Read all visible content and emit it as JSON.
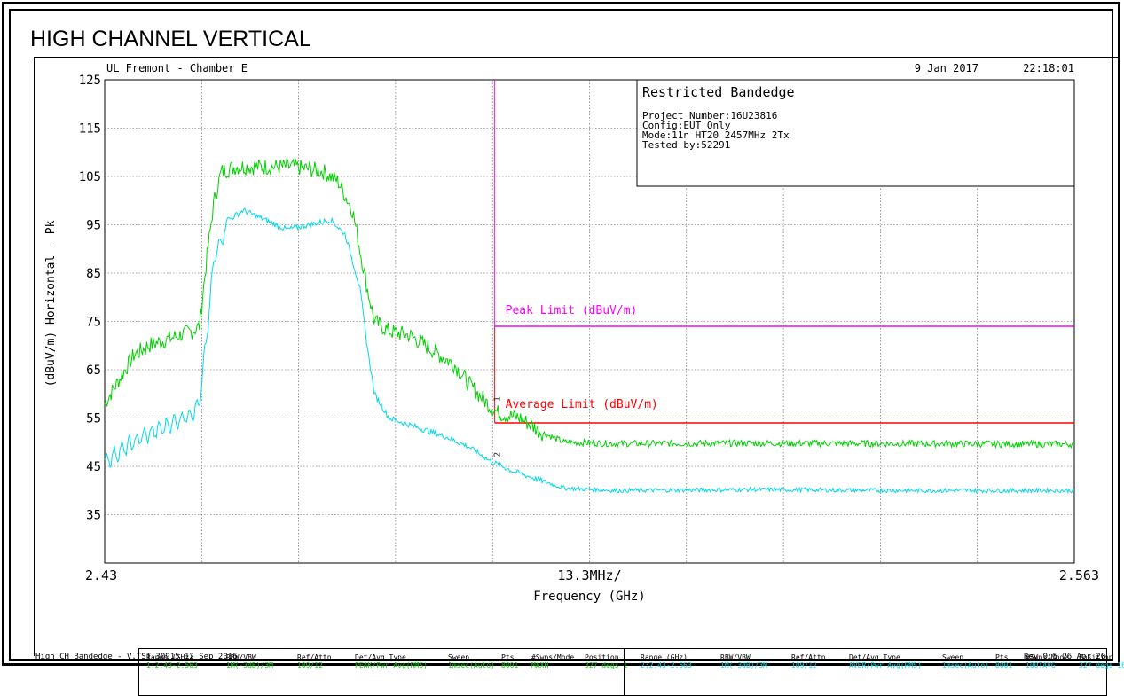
{
  "report": {
    "title": "HIGH CHANNEL VERTICAL",
    "lab": "UL Fremont - Chamber E",
    "date": "9 Jan 2017",
    "time": "22:18:01",
    "footer_left": "High CH Bandedge - V.TST 30915 12 Sep 2016",
    "footer_right": "Rev 9.5 26 Apr 20"
  },
  "info_box": {
    "heading": "Restricted Bandedge",
    "lines": [
      "Project Number:16U23816",
      "Config:EUT Only",
      "Mode:11n HT20 2457MHz 2Tx",
      "Tested by:52291"
    ]
  },
  "settings_table": {
    "headers": [
      "Range (GHz)",
      "RBW/VBW",
      "Ref/Attn",
      "Det/Avg Type",
      "Sweep",
      "Pts",
      "#Swps/Mode",
      "Position"
    ],
    "rows": [
      [
        "1:2.43-2.563",
        "1M(-3dB)/3M",
        "109/12",
        "PEAK/Pwr Avg(RMS)",
        "1msec(Auto)",
        "8001",
        "MAXH",
        "327 degs 1"
      ],
      [
        "2:2.43-2.563",
        "1M(-3dB)/3M",
        "109/12",
        "AVER/Pwr Avg(RMS)",
        "1msec(Auto)",
        "8001",
        "100TAVG",
        "327 degs 166"
      ]
    ]
  },
  "chart_data": {
    "type": "line",
    "title": "HIGH CHANNEL VERTICAL",
    "xlabel": "Frequency (GHz)",
    "ylabel": "(dBuV/m) Horizontal - Pk",
    "x_tick_left": "2.43",
    "x_tick_center": "13.3MHz/",
    "x_tick_right": "2.563",
    "xlim": [
      2.43,
      2.563
    ],
    "ylim": [
      25,
      125
    ],
    "y_ticks": [
      "125",
      "115",
      "105",
      "95",
      "85",
      "75",
      "65",
      "55",
      "45",
      "35"
    ],
    "grid": true,
    "x_divisions": 10,
    "y_divisions": 10,
    "band_edge_x": 2.4835,
    "series": [
      {
        "name": "",
        "role": "peak",
        "color": "#00d000",
        "points": [
          [
            2.43,
            58
          ],
          [
            2.432,
            63
          ],
          [
            2.434,
            68
          ],
          [
            2.436,
            70
          ],
          [
            2.438,
            71
          ],
          [
            2.44,
            72
          ],
          [
            2.442,
            73
          ],
          [
            2.443,
            74
          ],
          [
            2.444,
            88
          ],
          [
            2.445,
            100
          ],
          [
            2.446,
            106
          ],
          [
            2.448,
            107
          ],
          [
            2.452,
            107
          ],
          [
            2.456,
            107
          ],
          [
            2.46,
            106
          ],
          [
            2.462,
            104
          ],
          [
            2.464,
            98
          ],
          [
            2.465,
            90
          ],
          [
            2.466,
            82
          ],
          [
            2.467,
            75
          ],
          [
            2.469,
            73
          ],
          [
            2.472,
            72
          ],
          [
            2.475,
            69
          ],
          [
            2.478,
            66
          ],
          [
            2.48,
            62
          ],
          [
            2.4825,
            58
          ],
          [
            2.484,
            56
          ],
          [
            2.487,
            55
          ],
          [
            2.49,
            52
          ],
          [
            2.493,
            50
          ],
          [
            2.5,
            49.7
          ],
          [
            2.52,
            49.8
          ],
          [
            2.54,
            49.7
          ],
          [
            2.563,
            49.6
          ]
        ]
      },
      {
        "name": "",
        "role": "average",
        "color": "#00d8e8",
        "points": [
          [
            2.43,
            46
          ],
          [
            2.432,
            48
          ],
          [
            2.435,
            51
          ],
          [
            2.438,
            53
          ],
          [
            2.442,
            56
          ],
          [
            2.443,
            58
          ],
          [
            2.444,
            72
          ],
          [
            2.445,
            88
          ],
          [
            2.447,
            96
          ],
          [
            2.449,
            98
          ],
          [
            2.452,
            96
          ],
          [
            2.455,
            94
          ],
          [
            2.458,
            95
          ],
          [
            2.461,
            96
          ],
          [
            2.463,
            93
          ],
          [
            2.465,
            82
          ],
          [
            2.466,
            70
          ],
          [
            2.467,
            60
          ],
          [
            2.469,
            55
          ],
          [
            2.473,
            53
          ],
          [
            2.477,
            51
          ],
          [
            2.48,
            49
          ],
          [
            2.483,
            46
          ],
          [
            2.486,
            44
          ],
          [
            2.49,
            42
          ],
          [
            2.493,
            40.5
          ],
          [
            2.5,
            40
          ],
          [
            2.52,
            40.2
          ],
          [
            2.54,
            40
          ],
          [
            2.563,
            40
          ]
        ]
      }
    ],
    "limits": [
      {
        "label": "Peak Limit (dBuV/m)",
        "value": 74,
        "color": "#ff00ff",
        "x_start": 2.4835
      },
      {
        "label": "Average Limit (dBuV/m)",
        "value": 54,
        "color": "#ff0000",
        "x_start": 2.4835
      }
    ],
    "markers": [
      {
        "label": "1",
        "x": 2.4835,
        "y": 58
      },
      {
        "label": "2",
        "x": 2.4835,
        "y": 46.5
      }
    ]
  }
}
